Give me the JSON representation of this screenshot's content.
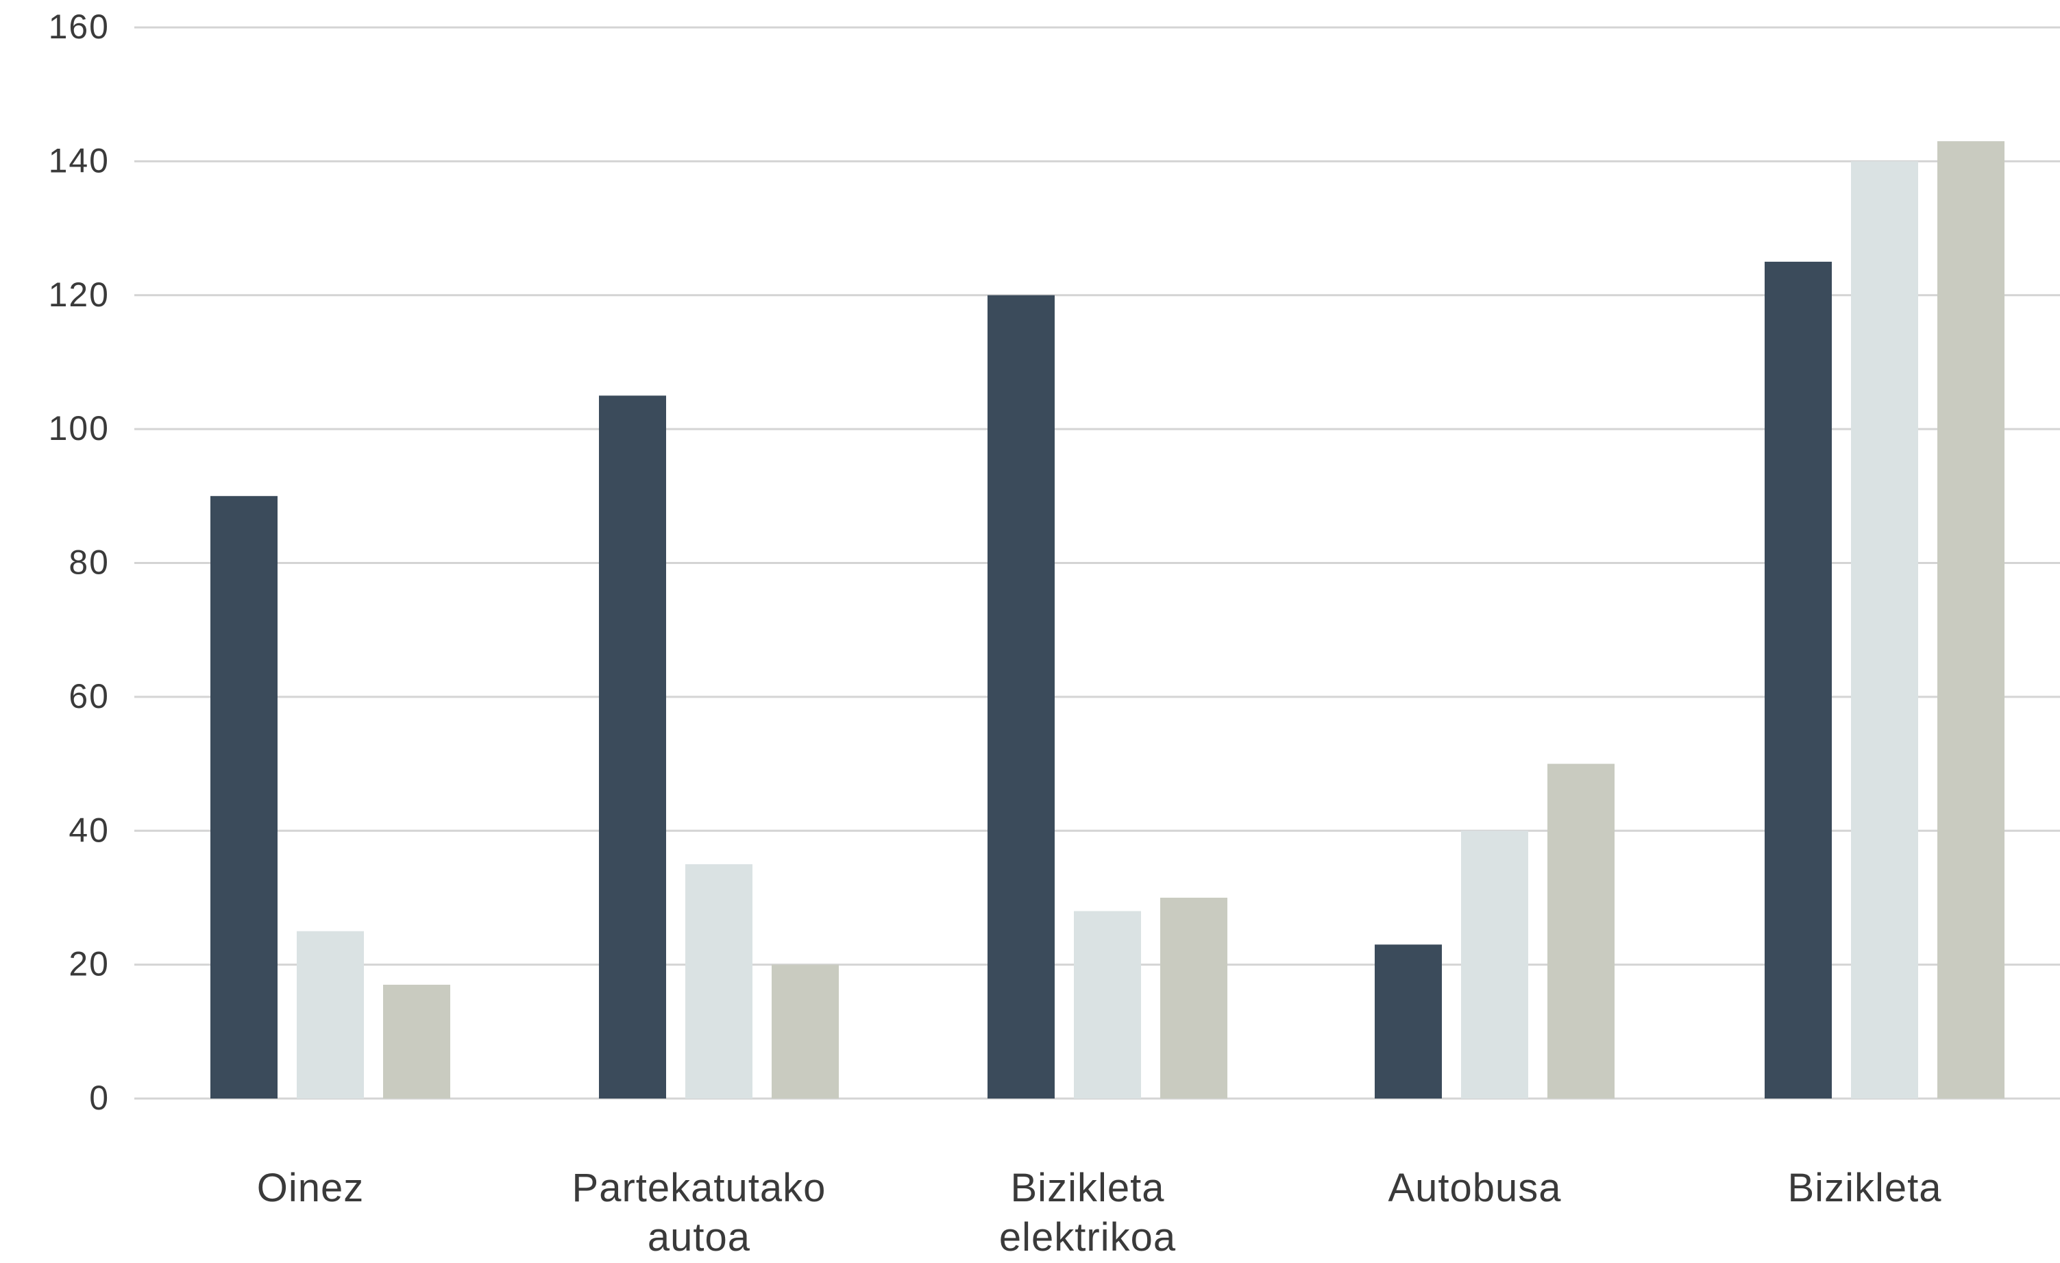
{
  "chart_data": {
    "type": "bar",
    "title": "",
    "xlabel": "",
    "ylabel": "",
    "ylim": [
      0,
      160
    ],
    "yticks": [
      0,
      20,
      40,
      60,
      80,
      100,
      120,
      140,
      160
    ],
    "grid": true,
    "legend": "none",
    "categories": [
      [
        "Oinez"
      ],
      [
        "Partekatutako",
        "autoa"
      ],
      [
        "Bizikleta",
        "elektrikoa"
      ],
      [
        "Autobusa"
      ],
      [
        "Bizikleta"
      ]
    ],
    "series": [
      {
        "color": "#3b4b5b",
        "values": [
          90,
          105,
          120,
          23,
          125
        ]
      },
      {
        "color": "#dae2e3",
        "values": [
          25,
          35,
          28,
          40,
          140
        ]
      },
      {
        "color": "#c9cbc0",
        "values": [
          17,
          20,
          30,
          50,
          143
        ]
      }
    ],
    "colors": {
      "grid": "#d4d4d4",
      "text": "#3a3a3a"
    }
  }
}
